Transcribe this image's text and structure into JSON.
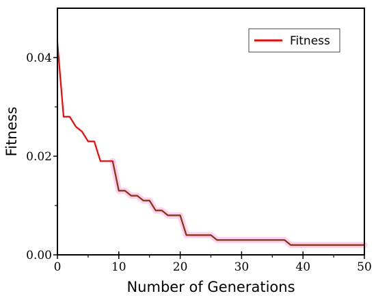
{
  "chart_data": {
    "type": "line",
    "title": "",
    "xlabel": "Number of Generations",
    "ylabel": "Fitness",
    "xlim": [
      0,
      50
    ],
    "ylim": [
      0,
      0.05
    ],
    "xticks": [
      0,
      10,
      20,
      30,
      40,
      50
    ],
    "xtick_labels": [
      "0",
      "10",
      "20",
      "30",
      "40",
      "50"
    ],
    "yticks": [
      0,
      0.02,
      0.04
    ],
    "ytick_labels": [
      "0.00",
      "0.02",
      "0.04"
    ],
    "grid": false,
    "legend_position": "top-right",
    "series": [
      {
        "name": "Fitness",
        "color": "#ff0000",
        "overlay_color": "#7a3d10",
        "highlight_color": "#ffd0f0",
        "x": [
          0,
          1,
          2,
          3,
          4,
          5,
          6,
          7,
          8,
          9,
          10,
          11,
          12,
          13,
          14,
          15,
          16,
          17,
          18,
          19,
          20,
          21,
          22,
          23,
          24,
          25,
          26,
          27,
          28,
          29,
          30,
          31,
          32,
          33,
          34,
          35,
          36,
          37,
          38,
          39,
          40,
          41,
          42,
          43,
          44,
          45,
          46,
          47,
          48,
          49,
          50
        ],
        "y": [
          0.043,
          0.028,
          0.028,
          0.026,
          0.025,
          0.023,
          0.023,
          0.019,
          0.019,
          0.019,
          0.013,
          0.013,
          0.012,
          0.012,
          0.011,
          0.011,
          0.009,
          0.009,
          0.008,
          0.008,
          0.008,
          0.004,
          0.004,
          0.004,
          0.004,
          0.004,
          0.003,
          0.003,
          0.003,
          0.003,
          0.003,
          0.003,
          0.003,
          0.003,
          0.003,
          0.003,
          0.003,
          0.003,
          0.002,
          0.002,
          0.002,
          0.002,
          0.002,
          0.002,
          0.002,
          0.002,
          0.002,
          0.002,
          0.002,
          0.002,
          0.002
        ]
      }
    ]
  }
}
